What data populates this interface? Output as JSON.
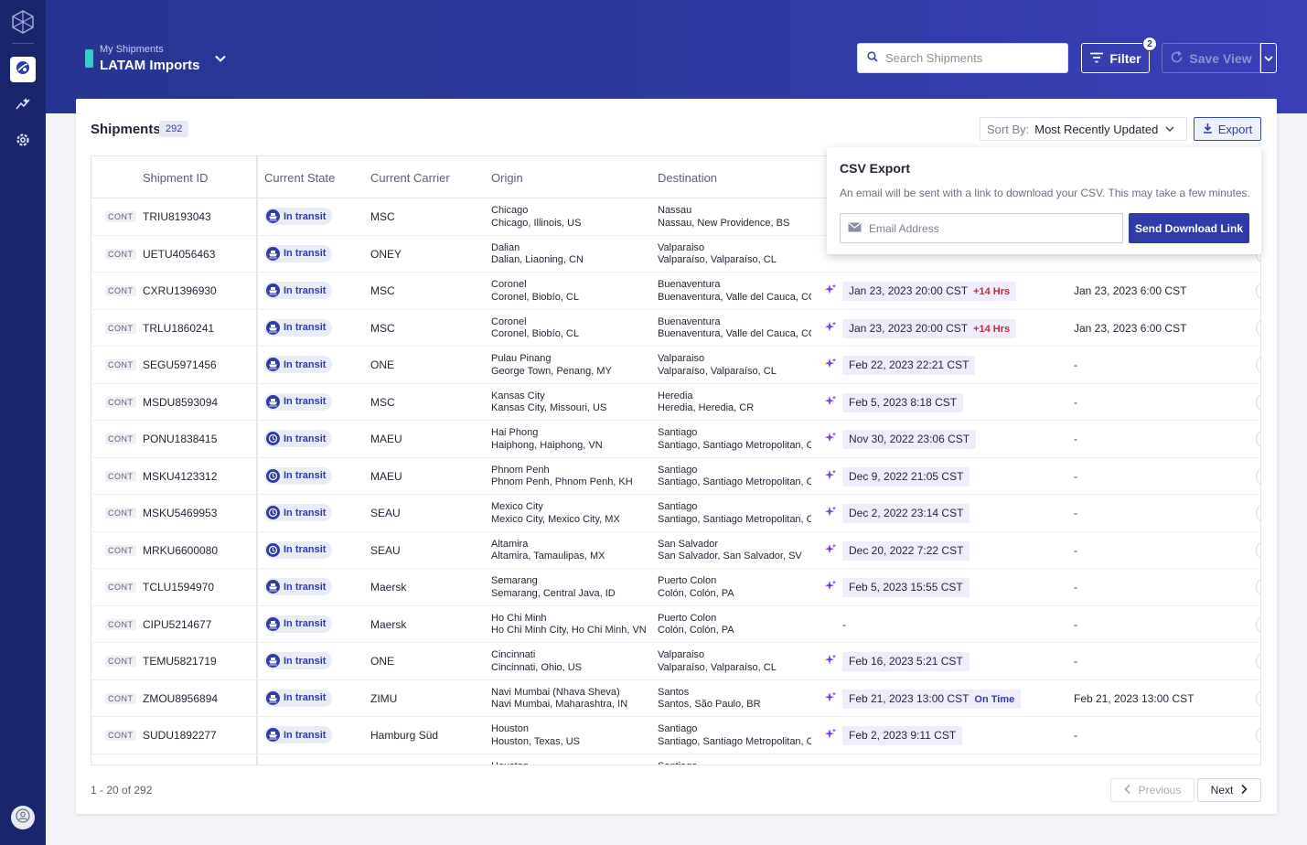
{
  "header": {
    "view_sub": "My Shipments",
    "view_title": "LATAM Imports",
    "search_placeholder": "Search Shipments",
    "filter_label": "Filter",
    "filter_count": "2",
    "save_view_label": "Save View"
  },
  "card": {
    "title": "Shipments",
    "count": "292",
    "sort_key": "Sort By:",
    "sort_value": "Most Recently Updated",
    "export_label": "Export"
  },
  "columns": [
    "Shipment ID",
    "Current State",
    "Current Carrier",
    "Origin",
    "Destination"
  ],
  "rows": [
    {
      "tag": "CONT",
      "id": "TRIU8193043",
      "state": "In transit",
      "state_icon": "ship-icon",
      "carrier": "MSC",
      "origin_city": "Chicago",
      "origin_full": "Chicago, Illinois, US",
      "dest_city": "Nassau",
      "dest_full": "Nassau, New Providence, BS",
      "eta": "",
      "eta_delta": "",
      "eta_status": "",
      "orig_eta": ""
    },
    {
      "tag": "CONT",
      "id": "UETU4056463",
      "state": "In transit",
      "state_icon": "ship-icon",
      "carrier": "ONEY",
      "origin_city": "Dalian",
      "origin_full": "Dalian, Liaoning, CN",
      "dest_city": "Valparaiso",
      "dest_full": "Valparaíso, Valparaíso, CL",
      "eta": "",
      "eta_delta": "",
      "eta_status": "",
      "orig_eta": ""
    },
    {
      "tag": "CONT",
      "id": "CXRU1396930",
      "state": "In transit",
      "state_icon": "ship-icon",
      "carrier": "MSC",
      "origin_city": "Coronel",
      "origin_full": "Coronel, Biobío, CL",
      "dest_city": "Buenaventura",
      "dest_full": "Buenaventura, Valle del Cauca, CO",
      "eta": "Jan 23, 2023 20:00 CST",
      "eta_delta": "+14 Hrs",
      "eta_status": "",
      "orig_eta": "Jan 23, 2023 6:00 CST"
    },
    {
      "tag": "CONT",
      "id": "TRLU1860241",
      "state": "In transit",
      "state_icon": "ship-icon",
      "carrier": "MSC",
      "origin_city": "Coronel",
      "origin_full": "Coronel, Biobío, CL",
      "dest_city": "Buenaventura",
      "dest_full": "Buenaventura, Valle del Cauca, CO",
      "eta": "Jan 23, 2023 20:00 CST",
      "eta_delta": "+14 Hrs",
      "eta_status": "",
      "orig_eta": "Jan 23, 2023 6:00 CST"
    },
    {
      "tag": "CONT",
      "id": "SEGU5971456",
      "state": "In transit",
      "state_icon": "ship-icon",
      "carrier": "ONE",
      "origin_city": "Pulau Pinang",
      "origin_full": "George Town, Penang, MY",
      "dest_city": "Valparaiso",
      "dest_full": "Valparaíso, Valparaíso, CL",
      "eta": "Feb 22, 2023 22:21 CST",
      "eta_delta": "",
      "eta_status": "",
      "orig_eta": "-"
    },
    {
      "tag": "CONT",
      "id": "MSDU8593094",
      "state": "In transit",
      "state_icon": "ship-icon",
      "carrier": "MSC",
      "origin_city": "Kansas City",
      "origin_full": "Kansas City, Missouri, US",
      "dest_city": "Heredia",
      "dest_full": "Heredia, Heredia, CR",
      "eta": "Feb 5, 2023 8:18 CST",
      "eta_delta": "",
      "eta_status": "",
      "orig_eta": "-"
    },
    {
      "tag": "CONT",
      "id": "PONU1838415",
      "state": "In transit",
      "state_icon": "clock-icon",
      "carrier": "MAEU",
      "origin_city": "Hai Phong",
      "origin_full": "Haiphong, Haiphong, VN",
      "dest_city": "Santiago",
      "dest_full": "Santiago, Santiago Metropolitan, CL",
      "eta": "Nov 30, 2022 23:06 CST",
      "eta_delta": "",
      "eta_status": "",
      "orig_eta": "-"
    },
    {
      "tag": "CONT",
      "id": "MSKU4123312",
      "state": "In transit",
      "state_icon": "clock-icon",
      "carrier": "MAEU",
      "origin_city": "Phnom Penh",
      "origin_full": "Phnom Penh, Phnom Penh, KH",
      "dest_city": "Santiago",
      "dest_full": "Santiago, Santiago Metropolitan, CL",
      "eta": "Dec 9, 2022 21:05 CST",
      "eta_delta": "",
      "eta_status": "",
      "orig_eta": "-"
    },
    {
      "tag": "CONT",
      "id": "MSKU5469953",
      "state": "In transit",
      "state_icon": "clock-icon",
      "carrier": "SEAU",
      "origin_city": "Mexico City",
      "origin_full": "Mexico City, Mexico City, MX",
      "dest_city": "Santiago",
      "dest_full": "Santiago, Santiago Metropolitan, CL",
      "eta": "Dec 2, 2022 23:14 CST",
      "eta_delta": "",
      "eta_status": "",
      "orig_eta": "-"
    },
    {
      "tag": "CONT",
      "id": "MRKU6600080",
      "state": "In transit",
      "state_icon": "clock-icon",
      "carrier": "SEAU",
      "origin_city": "Altamira",
      "origin_full": "Altamira, Tamaulipas, MX",
      "dest_city": "San Salvador",
      "dest_full": "San Salvador, San Salvador, SV",
      "eta": "Dec 20, 2022 7:22 CST",
      "eta_delta": "",
      "eta_status": "",
      "orig_eta": "-"
    },
    {
      "tag": "CONT",
      "id": "TCLU1594970",
      "state": "In transit",
      "state_icon": "ship-icon",
      "carrier": "Maersk",
      "origin_city": "Semarang",
      "origin_full": "Semarang, Central Java, ID",
      "dest_city": "Puerto Colon",
      "dest_full": "Colón, Colón, PA",
      "eta": "Feb 5, 2023 15:55 CST",
      "eta_delta": "",
      "eta_status": "",
      "orig_eta": "-"
    },
    {
      "tag": "CONT",
      "id": "CIPU5214677",
      "state": "In transit",
      "state_icon": "ship-icon",
      "carrier": "Maersk",
      "origin_city": "Ho Chi Minh",
      "origin_full": "Ho Chi Minh City, Ho Chi Minh, VN",
      "dest_city": "Puerto Colon",
      "dest_full": "Colón, Colón, PA",
      "eta": "-",
      "eta_delta": "",
      "eta_status": "",
      "orig_eta": "-"
    },
    {
      "tag": "CONT",
      "id": "TEMU5821719",
      "state": "In transit",
      "state_icon": "ship-icon",
      "carrier": "ONE",
      "origin_city": "Cincinnati",
      "origin_full": "Cincinnati, Ohio, US",
      "dest_city": "Valparaiso",
      "dest_full": "Valparaíso, Valparaíso, CL",
      "eta": "Feb 16, 2023 5:21 CST",
      "eta_delta": "",
      "eta_status": "",
      "orig_eta": "-"
    },
    {
      "tag": "CONT",
      "id": "ZMOU8956894",
      "state": "In transit",
      "state_icon": "ship-icon",
      "carrier": "ZIMU",
      "origin_city": "Navi Mumbai (Nhava Sheva)",
      "origin_full": "Navi Mumbai, Maharashtra, IN",
      "dest_city": "Santos",
      "dest_full": "Santos, São Paulo, BR",
      "eta": "Feb 21, 2023 13:00 CST",
      "eta_delta": "",
      "eta_status": "On Time",
      "orig_eta": "Feb 21, 2023 13:00 CST"
    },
    {
      "tag": "CONT",
      "id": "SUDU1892277",
      "state": "In transit",
      "state_icon": "ship-icon",
      "carrier": "Hamburg Süd",
      "origin_city": "Houston",
      "origin_full": "Houston, Texas, US",
      "dest_city": "Santiago",
      "dest_full": "Santiago, Santiago Metropolitan, CL",
      "eta": "Feb 2, 2023 9:11 CST",
      "eta_delta": "",
      "eta_status": "",
      "orig_eta": "-"
    },
    {
      "tag": "",
      "id": "",
      "state": "",
      "state_icon": "ship-icon",
      "carrier": "",
      "origin_city": "Houston",
      "origin_full": "",
      "dest_city": "Santiago",
      "dest_full": "",
      "eta": "",
      "eta_delta": "",
      "eta_status": "",
      "orig_eta": ""
    }
  ],
  "csv_export": {
    "title": "CSV Export",
    "description": "An email will be sent with a link to download your CSV. This may take a few minutes.",
    "email_placeholder": "Email Address",
    "send_label": "Send Download Link"
  },
  "pagination": {
    "range": "1 - 20 of 292",
    "previous": "Previous",
    "next": "Next"
  },
  "colors": {
    "accent": "#2f3ba8",
    "sidebar": "#19266b",
    "delay": "#c6283c",
    "eta_bg": "#f1ecfb",
    "spark": "#7b3fe4"
  }
}
